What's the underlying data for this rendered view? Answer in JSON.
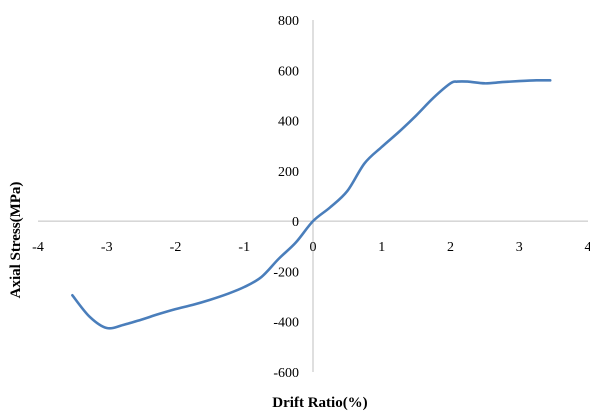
{
  "chart_data": {
    "type": "line",
    "title": "",
    "xlabel": "Drift Ratio(%)",
    "ylabel": "Axial Stress(MPa)",
    "xlim": [
      -4,
      4
    ],
    "ylim": [
      -600,
      800
    ],
    "xticks": [
      "-4",
      "-3",
      "-2",
      "-1",
      "0",
      "1",
      "2",
      "3",
      "4"
    ],
    "yticks": [
      "-600",
      "-400",
      "-200",
      "0",
      "200",
      "400",
      "600",
      "800"
    ],
    "grid": false,
    "legend": "none",
    "series": [
      {
        "color": "#4a7ebb",
        "x": [
          -3.5,
          -3.25,
          -3.0,
          -2.75,
          -2.5,
          -2.25,
          -2.0,
          -1.75,
          -1.5,
          -1.25,
          -1.0,
          -0.75,
          -0.5,
          -0.25,
          0.0,
          0.25,
          0.5,
          0.75,
          1.0,
          1.25,
          1.5,
          1.75,
          2.0,
          2.1,
          2.25,
          2.5,
          2.75,
          3.0,
          3.25,
          3.45
        ],
        "y": [
          -295,
          -380,
          -425,
          -412,
          -392,
          -370,
          -350,
          -333,
          -313,
          -290,
          -262,
          -222,
          -150,
          -85,
          0,
          55,
          120,
          230,
          295,
          355,
          420,
          490,
          548,
          555,
          555,
          548,
          553,
          557,
          560,
          560
        ]
      }
    ]
  }
}
